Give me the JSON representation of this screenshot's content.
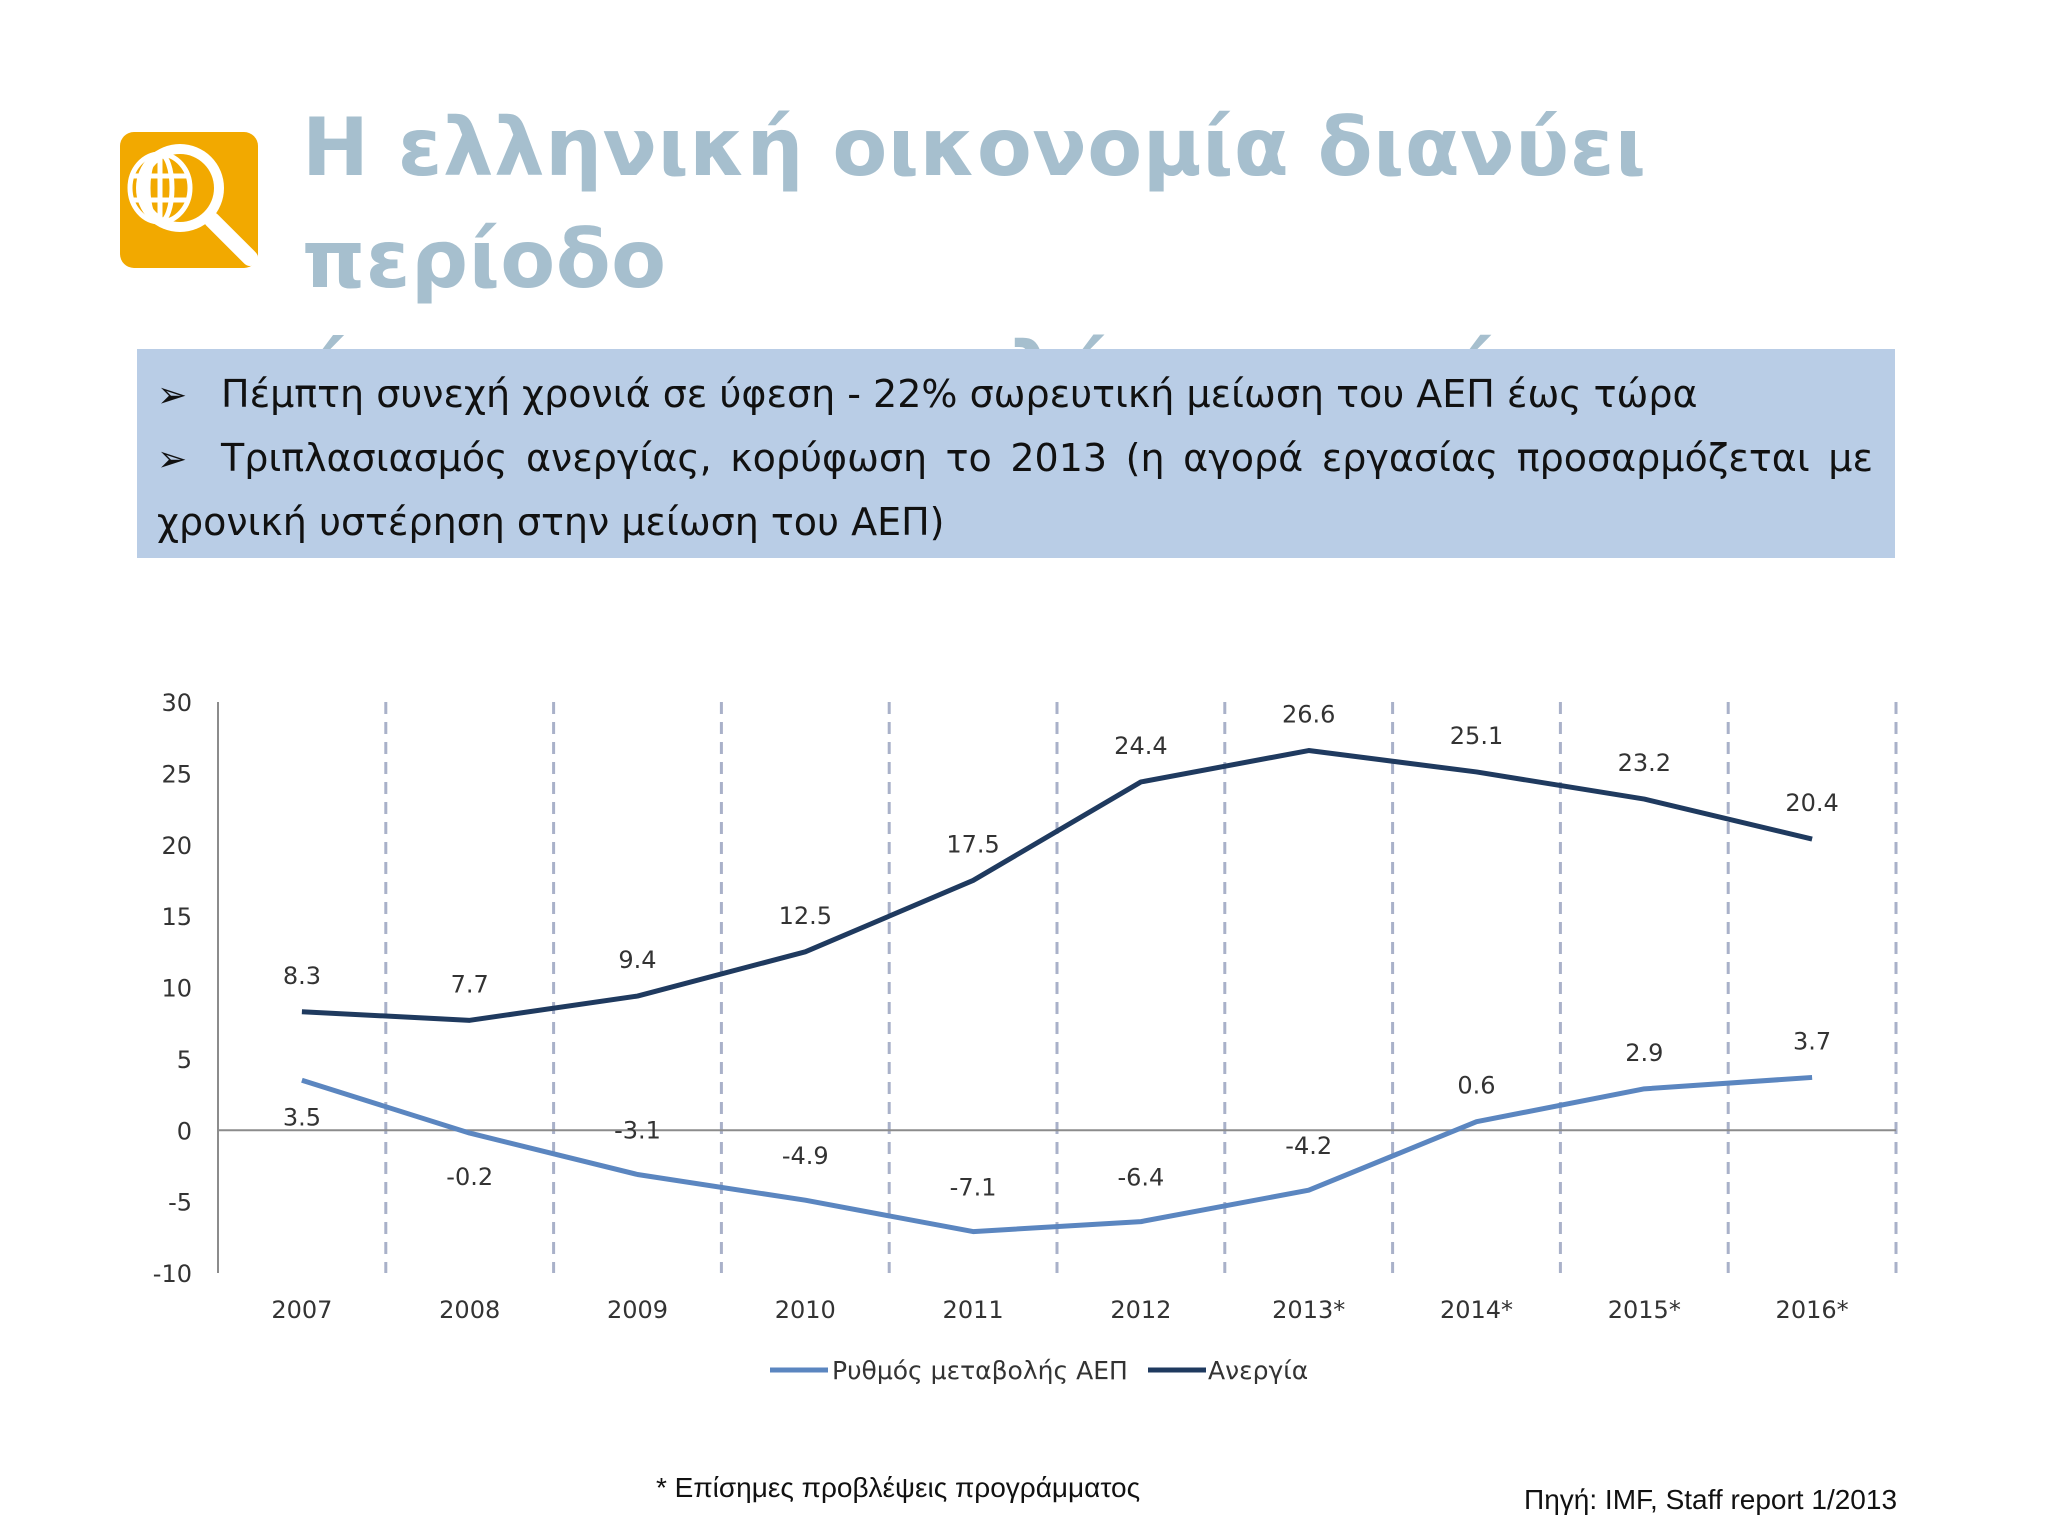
{
  "slide": {
    "title_lines": [
      "Η ελληνική οικονομία διανύει περίοδο",
      "ύφεσης και υψηλής ανεργίας"
    ],
    "logo_icon": "globe-magnifier-icon",
    "accent_color": "#f2a900",
    "title_color": "#a6bfce",
    "bullet_box_color": "#b9cde6",
    "bullets": {
      "arrow_glyph": "➢",
      "b1": "Πέμπτη συνεχή χρονιά σε ύφεση - 22% σωρευτική μείωση του ΑΕΠ έως τώρα",
      "b2_first": "Τριπλασιασμός ανεργίας, κορύφωση το 2013 (η αγορά εργασίας προσαρμόζεται με",
      "b2_cont": "χρονική υστέρηση στην μείωση του ΑΕΠ)"
    },
    "footnote": "* Επίσημες προβλέψεις προγράμματος",
    "source": "Πηγή: IMF, Staff report 1/2013"
  },
  "chart_data": {
    "type": "line",
    "title": "",
    "xlabel": "",
    "ylabel": "",
    "categories": [
      "2007",
      "2008",
      "2009",
      "2010",
      "2011",
      "2012",
      "2013*",
      "2014*",
      "2015*",
      "2016*"
    ],
    "ylim": [
      -10,
      30
    ],
    "yticks": [
      30,
      25,
      20,
      15,
      10,
      5,
      0,
      -5,
      -10
    ],
    "grid": "vertical dashed lines between categories",
    "legend_position": "bottom",
    "series": [
      {
        "name": "Ρυθμός μεταβολής ΑΕΠ",
        "color": "#5b86c0",
        "values": [
          3.5,
          -0.2,
          -3.1,
          -4.9,
          -7.1,
          -6.4,
          -4.2,
          0.6,
          2.9,
          3.7
        ],
        "labels": [
          "3.5",
          "-0.2",
          "-3.1",
          "-4.9",
          "-7.1",
          "-6.4",
          "-4.2",
          "0.6",
          "2.9",
          "3.7"
        ]
      },
      {
        "name": "Ανεργία",
        "color": "#1f3a5f",
        "values": [
          8.3,
          7.7,
          9.4,
          12.5,
          17.5,
          24.4,
          26.6,
          25.1,
          23.2,
          20.4
        ],
        "labels": [
          "8.3",
          "7.7",
          "9.4",
          "12.5",
          "17.5",
          "24.4",
          "26.6",
          "25.1",
          "23.2",
          "20.4"
        ]
      }
    ]
  }
}
